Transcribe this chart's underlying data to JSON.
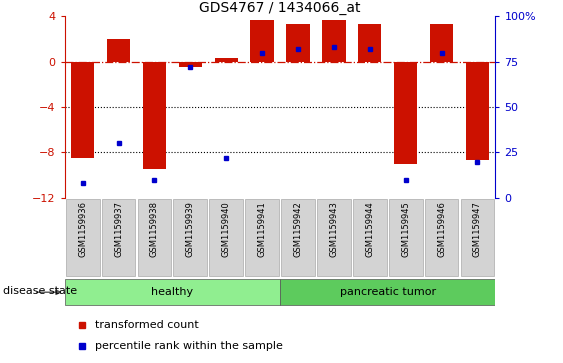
{
  "title": "GDS4767 / 1434066_at",
  "samples": [
    "GSM1159936",
    "GSM1159937",
    "GSM1159938",
    "GSM1159939",
    "GSM1159940",
    "GSM1159941",
    "GSM1159942",
    "GSM1159943",
    "GSM1159944",
    "GSM1159945",
    "GSM1159946",
    "GSM1159947"
  ],
  "transformed_count": [
    -8.5,
    2.0,
    -9.5,
    -0.5,
    0.3,
    3.7,
    3.3,
    3.7,
    3.3,
    -9.0,
    3.3,
    -8.7
  ],
  "percentile_rank": [
    8,
    30,
    10,
    72,
    22,
    80,
    82,
    83,
    82,
    10,
    80,
    20
  ],
  "disease_groups": [
    {
      "label": "healthy",
      "start": 0,
      "end": 5,
      "color": "#90EE90"
    },
    {
      "label": "pancreatic tumor",
      "start": 6,
      "end": 11,
      "color": "#5DCB5D"
    }
  ],
  "ylim": [
    -12,
    4
  ],
  "yticks_left": [
    -12,
    -8,
    -4,
    0,
    4
  ],
  "yticks_right": [
    0,
    25,
    50,
    75,
    100
  ],
  "bar_color": "#CC1100",
  "dot_color": "#0000CC",
  "dotted_lines": [
    -4,
    -8
  ],
  "bg_color": "#ffffff",
  "label_bg": "#d3d3d3",
  "legend_items": [
    "transformed count",
    "percentile rank within the sample"
  ]
}
